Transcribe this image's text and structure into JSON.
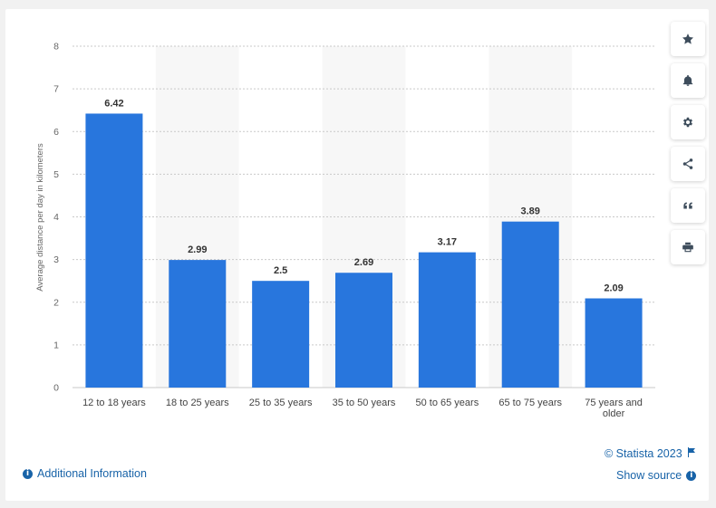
{
  "chart_data": {
    "type": "bar",
    "categories": [
      "12 to 18 years",
      "18 to 25 years",
      "25 to 35 years",
      "35 to 50 years",
      "50 to 65 years",
      "65 to 75 years",
      "75 years and older"
    ],
    "category_lines": [
      [
        "12 to 18 years"
      ],
      [
        "18 to 25 years"
      ],
      [
        "25 to 35 years"
      ],
      [
        "35 to 50 years"
      ],
      [
        "50 to 65 years"
      ],
      [
        "65 to 75 years"
      ],
      [
        "75 years and",
        "older"
      ]
    ],
    "values": [
      6.42,
      2.99,
      2.5,
      2.69,
      3.17,
      3.89,
      2.09
    ],
    "value_labels": [
      "6.42",
      "2.99",
      "2.5",
      "2.69",
      "3.17",
      "3.89",
      "2.09"
    ],
    "ylabel": "Average distance per day in kilometers",
    "xlabel": "",
    "ylim": [
      0,
      8
    ],
    "yticks": [
      0,
      1,
      2,
      3,
      4,
      5,
      6,
      7,
      8
    ],
    "grid": true,
    "bar_color": "#2876dd",
    "alt_band_color": "#f7f7f7"
  },
  "sidebar": {
    "buttons": [
      {
        "name": "favorite-star-icon"
      },
      {
        "name": "notification-bell-icon"
      },
      {
        "name": "settings-gear-icon"
      },
      {
        "name": "share-icon"
      },
      {
        "name": "cite-quote-icon"
      },
      {
        "name": "print-icon"
      }
    ]
  },
  "footer": {
    "copyright": "© Statista 2023",
    "show_source": "Show source",
    "additional_info": "Additional Information",
    "link_color": "#1863a8"
  }
}
